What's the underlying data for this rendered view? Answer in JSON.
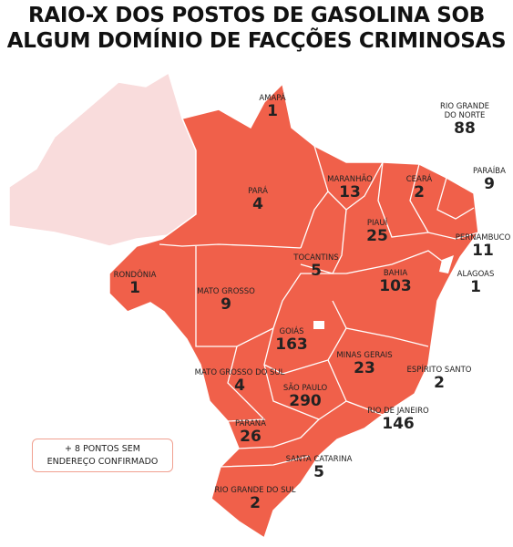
{
  "title": [
    "RAIO-X DOS POSTOS DE GASOLINA SOB",
    "ALGUM DOMÍNIO DE FACÇÕES CRIMINOSAS"
  ],
  "states": [
    {
      "name": "AMAPÁ",
      "value": 1
    },
    {
      "name": "RIO GRANDE DO NORTE",
      "value": 88
    },
    {
      "name": "PARAÍBA",
      "value": 9
    },
    {
      "name": "CEARÁ",
      "value": 2
    },
    {
      "name": "MARANHÃO",
      "value": 13
    },
    {
      "name": "PARÁ",
      "value": 4
    },
    {
      "name": "PIAUÍ",
      "value": 25
    },
    {
      "name": "PERNAMBUCO",
      "value": 11
    },
    {
      "name": "TOCANTINS",
      "value": 5
    },
    {
      "name": "ALAGOAS",
      "value": 1
    },
    {
      "name": "RONDÔNIA",
      "value": 1
    },
    {
      "name": "BAHIA",
      "value": 103
    },
    {
      "name": "MATO GROSSO",
      "value": 9
    },
    {
      "name": "GOIÁS",
      "value": 163
    },
    {
      "name": "MINAS GERAIS",
      "value": 23
    },
    {
      "name": "ESPÍRITO SANTO",
      "value": 2
    },
    {
      "name": "MATO GROSSO DO SUL",
      "value": 4
    },
    {
      "name": "SÃO PAULO",
      "value": 290
    },
    {
      "name": "RIO DE JANEIRO",
      "value": 146
    },
    {
      "name": "PARANÁ",
      "value": 26
    },
    {
      "name": "SANTA CATARINA",
      "value": 5
    },
    {
      "name": "RIO GRANDE DO SUL",
      "value": 2
    }
  ],
  "note": [
    "+ 8 PONTOS SEM",
    "ENDEREÇO CONFIRMADO"
  ]
}
